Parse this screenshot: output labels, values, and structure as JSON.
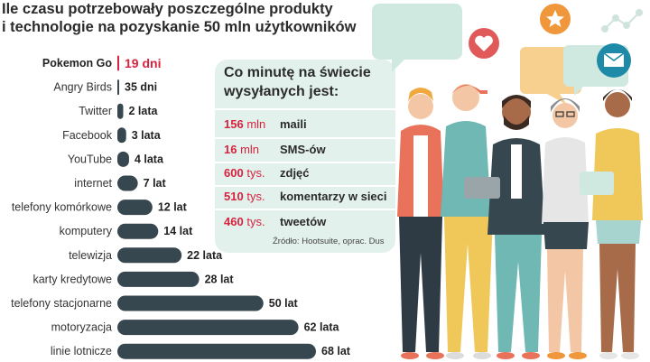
{
  "title": {
    "line1": "Ile czasu potrzebowały poszczególne produkty",
    "line2": "i technologie na pozyskanie 50 mln użytkowników"
  },
  "chart_data": {
    "type": "bar",
    "orientation": "horizontal",
    "title": "Ile czasu potrzebowały poszczególne produkty i technologie na pozyskanie 50 mln użytkowników",
    "unit": "lata",
    "categories": [
      "Pokemon Go",
      "Angry Birds",
      "Twitter",
      "Facebook",
      "YouTube",
      "internet",
      "telefony komórkowe",
      "komputery",
      "telewizja",
      "karty kredytowe",
      "telefony stacjonarne",
      "motoryzacja",
      "linie lotnicze"
    ],
    "values": [
      0.052,
      0.096,
      2,
      3,
      4,
      7,
      12,
      14,
      22,
      28,
      50,
      62,
      68
    ],
    "value_labels": [
      "19 dni",
      "35 dni",
      "2 lata",
      "3 lata",
      "4 lata",
      "7 lat",
      "12 lat",
      "14 lat",
      "22 lata",
      "28 lat",
      "50 lat",
      "62 lata",
      "68 lat"
    ],
    "highlight_index": 0,
    "colors": {
      "bar": "#37474f",
      "highlight": "#d8233f"
    }
  },
  "info_box": {
    "title_line1": "Co minutę na świecie",
    "title_line2": "wysyłanych jest:",
    "rows": [
      {
        "value": "156",
        "unit": "mln",
        "label": "maili"
      },
      {
        "value": "16",
        "unit": "mln",
        "label": "SMS-ów"
      },
      {
        "value": "600",
        "unit": "tys.",
        "label": "zdjęć"
      },
      {
        "value": "510",
        "unit": "tys.",
        "label": "komentarzy w sieci"
      },
      {
        "value": "460",
        "unit": "tys.",
        "label": "tweetów"
      }
    ],
    "source": "Źródło: Hootsuite, oprac. Dus",
    "colors": {
      "background": "#e3f1ec",
      "accent": "#d8233f"
    }
  },
  "illustration": {
    "icons": [
      "heart-icon",
      "star-icon",
      "mail-icon",
      "network-icon"
    ],
    "people_count": 5
  }
}
